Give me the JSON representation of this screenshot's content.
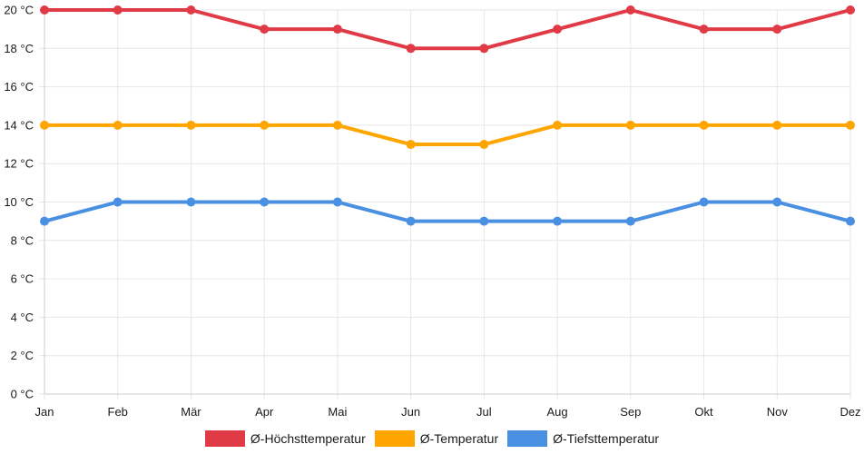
{
  "chart_data": {
    "type": "line",
    "categories": [
      "Jan",
      "Feb",
      "Mär",
      "Apr",
      "Mai",
      "Jun",
      "Jul",
      "Aug",
      "Sep",
      "Okt",
      "Nov",
      "Dez"
    ],
    "y_ticks": [
      "0 °C",
      "2 °C",
      "4 °C",
      "6 °C",
      "8 °C",
      "10 °C",
      "12 °C",
      "14 °C",
      "16 °C",
      "18 °C",
      "20 °C"
    ],
    "ylim": [
      0,
      20
    ],
    "grid": true,
    "legend_position": "bottom",
    "series": [
      {
        "name": "Ø-Höchsttemperatur",
        "color": "#e03a46",
        "values": [
          20,
          20,
          20,
          19,
          19,
          18,
          18,
          19,
          20,
          19,
          19,
          20
        ]
      },
      {
        "name": "Ø-Temperatur",
        "color": "#ffa500",
        "values": [
          14,
          14,
          14,
          14,
          14,
          13,
          13,
          14,
          14,
          14,
          14,
          14
        ]
      },
      {
        "name": "Ø-Tiefsttemperatur",
        "color": "#4a90e2",
        "values": [
          9,
          10,
          10,
          10,
          10,
          9,
          9,
          9,
          9,
          10,
          10,
          9
        ]
      }
    ]
  }
}
